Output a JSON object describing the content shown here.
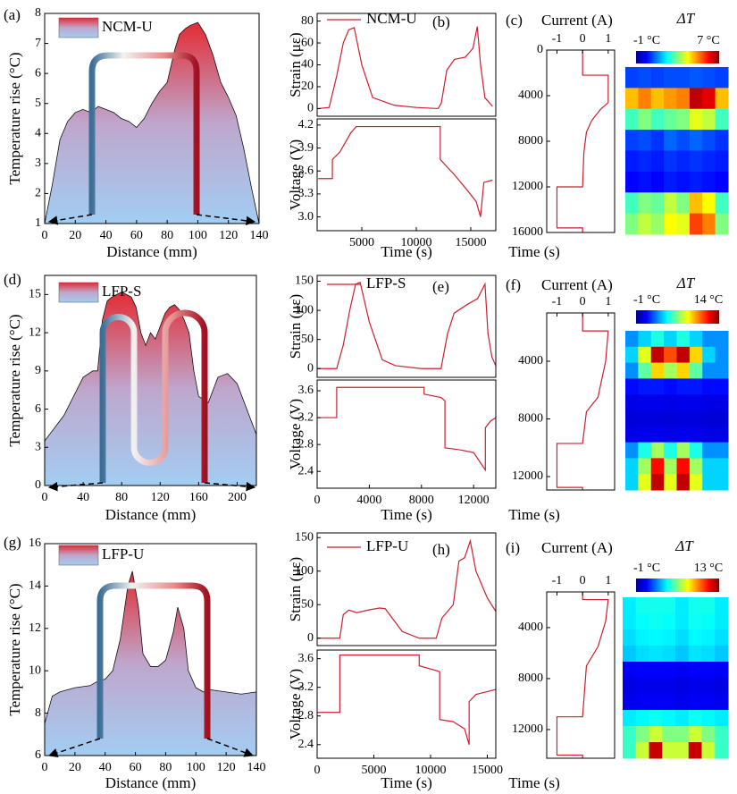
{
  "chart_data": [
    {
      "type": "area",
      "panel_label": "(a)",
      "xlabel": "Distance (mm)",
      "ylabel": "Temperature rise (°C)",
      "gradient": [
        "#e32b33",
        "#bfa6cc",
        "#a3cdf2"
      ],
      "x": [
        0,
        5,
        10,
        15,
        20,
        25,
        30,
        35,
        40,
        45,
        50,
        55,
        60,
        65,
        70,
        75,
        80,
        85,
        88,
        92,
        95,
        100,
        105,
        110,
        115,
        120,
        125,
        130,
        135,
        140
      ],
      "series": [
        {
          "name": "NCM-U",
          "values": [
            1.0,
            2.3,
            3.8,
            4.4,
            4.7,
            4.8,
            4.7,
            4.9,
            4.8,
            4.7,
            4.5,
            4.4,
            4.2,
            4.5,
            5.0,
            5.4,
            5.7,
            6.8,
            7.3,
            7.5,
            7.6,
            7.7,
            7.3,
            6.6,
            5.7,
            5.2,
            4.6,
            3.5,
            2.2,
            1.0
          ]
        }
      ],
      "xlim": [
        0,
        140
      ],
      "ylim": [
        1,
        8
      ],
      "xticks": [
        0,
        20,
        40,
        60,
        80,
        100,
        120,
        140
      ],
      "yticks": [
        1,
        2,
        3,
        4,
        5,
        6,
        7,
        8
      ]
    },
    {
      "type": "line",
      "panel_label": "(b)",
      "ylabel": "Strain (με)",
      "x": [
        1000,
        2000,
        2700,
        3300,
        3800,
        4300,
        5000,
        6000,
        8000,
        10000,
        12000,
        12300,
        12800,
        13500,
        14500,
        15200,
        15600,
        15900,
        16300,
        17000
      ],
      "series": [
        {
          "name": "NCM-U",
          "color": "#cc1f2f",
          "values": [
            0,
            1,
            30,
            60,
            72,
            74,
            40,
            10,
            3,
            1,
            0,
            5,
            35,
            45,
            47,
            55,
            75,
            40,
            10,
            2
          ]
        }
      ],
      "xlim": [
        900,
        17300
      ],
      "ylim": [
        -7,
        87
      ],
      "yticks": [
        0,
        20,
        40,
        60,
        80
      ]
    },
    {
      "type": "line",
      "xlabel": "Time (s)",
      "ylabel": "Voltage (V)",
      "x": [
        1000,
        2300,
        2300,
        3000,
        4000,
        4500,
        12200,
        12200,
        13500,
        14500,
        15500,
        15900,
        16200,
        17000
      ],
      "series": [
        {
          "color": "#cc1f2f",
          "values": [
            3.5,
            3.5,
            3.75,
            3.85,
            4.1,
            4.18,
            4.18,
            3.75,
            3.55,
            3.38,
            3.2,
            3.0,
            3.45,
            3.48
          ]
        }
      ],
      "xlim": [
        900,
        17300
      ],
      "ylim": [
        2.82,
        4.28
      ],
      "xticks": [
        5000,
        10000,
        15000
      ],
      "yticks": [
        {
          "value": 3,
          "label": "3.0"
        },
        3.3,
        3.6,
        3.9,
        4.2
      ]
    },
    {
      "type": "current",
      "panel_label": "(c)",
      "xlabel": "Current (A)",
      "ylabel": "Time (s)",
      "color": "#cc1f2f",
      "x": [
        0,
        2200,
        2200,
        4600,
        5200,
        6200,
        7200,
        9000,
        12000,
        12000,
        15600,
        15600,
        16000
      ],
      "values": [
        0,
        0,
        1,
        1,
        0.7,
        0.35,
        0.15,
        0.05,
        0,
        -1,
        -1,
        0,
        0
      ],
      "xlim": [
        -1.4,
        1.25
      ],
      "ylim": [
        0,
        16000
      ],
      "xticks": [
        -1,
        0,
        1
      ],
      "yticks": [
        0,
        4000,
        8000,
        12000,
        16000
      ]
    },
    {
      "type": "heatmap",
      "title": "ΔT",
      "clim": [
        -1,
        7
      ],
      "colorbar_ticks": [
        {
          "value": -1,
          "label": "-1 °C"
        },
        {
          "value": 7,
          "label": "7 °C"
        }
      ],
      "values": [
        [
          0.5,
          0.6,
          0.5,
          0.6,
          0.6,
          0.7,
          0.6,
          0.5
        ],
        [
          4.5,
          5,
          4.5,
          4.8,
          5,
          6.5,
          6.2,
          4.5
        ],
        [
          2.5,
          3,
          2.5,
          2.8,
          3,
          3.8,
          3.5,
          2.5
        ],
        [
          0.5,
          0.6,
          0.4,
          0.8,
          0.6,
          0.8,
          0.6,
          0.4
        ],
        [
          0.2,
          0.3,
          0.2,
          0.4,
          0.3,
          0.4,
          0.3,
          0.2
        ],
        [
          0,
          0.1,
          0,
          0.2,
          0.1,
          0.2,
          0.1,
          0
        ],
        [
          2.5,
          3,
          2.8,
          3.5,
          3,
          4.5,
          4,
          2.5
        ],
        [
          3,
          3.5,
          3.2,
          4,
          3.8,
          5.5,
          5,
          3
        ]
      ]
    },
    {
      "type": "area",
      "panel_label": "(d)",
      "xlabel": "Distance (mm)",
      "ylabel": "Temperature rise (°C)",
      "gradient": [
        "#e32b33",
        "#bfa6cc",
        "#a3cdf2"
      ],
      "x": [
        0,
        10,
        20,
        30,
        40,
        50,
        55,
        60,
        65,
        70,
        75,
        80,
        85,
        90,
        95,
        100,
        105,
        110,
        115,
        120,
        125,
        130,
        135,
        140,
        145,
        150,
        155,
        160,
        170,
        180,
        190,
        200,
        210,
        220
      ],
      "series": [
        {
          "name": "LFP-S",
          "values": [
            3.5,
            4.5,
            5.5,
            7,
            8.5,
            9,
            9,
            13,
            14.5,
            14.8,
            15,
            15.2,
            15,
            14.8,
            14,
            12,
            11,
            12,
            11.5,
            12.5,
            13.5,
            14,
            14.2,
            13.8,
            13,
            12,
            9,
            7,
            6.5,
            8.5,
            8.8,
            8,
            6,
            4
          ]
        }
      ],
      "xlim": [
        0,
        220
      ],
      "ylim": [
        0,
        16.5
      ],
      "xticks": [
        0,
        40,
        80,
        120,
        160,
        200
      ],
      "yticks": [
        0,
        3,
        6,
        9,
        12,
        15
      ]
    },
    {
      "type": "line",
      "panel_label": "(e)",
      "ylabel": "Strain (με)",
      "x": [
        0,
        1500,
        2000,
        2500,
        2950,
        3300,
        4000,
        5000,
        6000,
        8000,
        9500,
        10000,
        10500,
        11500,
        12300,
        12870,
        13100,
        13400,
        13700
      ],
      "series": [
        {
          "name": "LFP-S",
          "color": "#cc1f2f",
          "values": [
            0,
            0,
            40,
            100,
            145,
            148,
            80,
            15,
            5,
            0,
            0,
            60,
            95,
            110,
            120,
            145,
            60,
            20,
            5
          ]
        }
      ],
      "xlim": [
        0,
        13700
      ],
      "ylim": [
        -15,
        160
      ],
      "yticks": [
        0,
        50,
        100,
        150
      ]
    },
    {
      "type": "line",
      "xlabel": "Time (s)",
      "ylabel": "Voltage (V)",
      "x": [
        0,
        1500,
        1500,
        3000,
        8200,
        8200,
        9500,
        9800,
        9800,
        11000,
        12000,
        12900,
        12900,
        13300,
        13700
      ],
      "series": [
        {
          "color": "#cc1f2f",
          "values": [
            3.2,
            3.2,
            3.65,
            3.65,
            3.65,
            3.55,
            3.5,
            3.45,
            2.75,
            2.72,
            2.68,
            2.42,
            3.05,
            3.15,
            3.2
          ]
        }
      ],
      "xlim": [
        0,
        13700
      ],
      "ylim": [
        2.15,
        3.76
      ],
      "xticks": [
        0,
        4000,
        8000,
        12000
      ],
      "yticks": [
        2.4,
        2.8,
        3.2,
        3.6
      ]
    },
    {
      "type": "current",
      "panel_label": "(f)",
      "xlabel": "Current (A)",
      "ylabel": "Time (s)",
      "color": "#cc1f2f",
      "x": [
        650,
        1900,
        1900,
        4000,
        6500,
        7500,
        9700,
        9700,
        12750,
        12750,
        12930
      ],
      "values": [
        0,
        0,
        1,
        0.9,
        0.6,
        0.15,
        0,
        -1,
        -1,
        0,
        0
      ],
      "xlim": [
        -1.4,
        1.25
      ],
      "ylim": [
        650,
        12930
      ],
      "xticks": [
        -1,
        0,
        1
      ],
      "yticks": [
        4000,
        8000,
        12000
      ]
    },
    {
      "type": "heatmap",
      "title": "ΔT",
      "clim": [
        -1,
        14
      ],
      "colorbar_ticks": [
        {
          "value": -1,
          "label": "-1 °C"
        },
        {
          "value": 14,
          "label": "14 °C"
        }
      ],
      "values": [
        [
          3,
          4,
          5,
          4,
          5,
          4,
          3,
          3
        ],
        [
          4,
          8,
          13,
          11,
          13,
          9,
          4,
          3
        ],
        [
          3,
          6,
          9,
          7,
          9,
          6,
          3,
          3
        ],
        [
          1,
          1.2,
          1.2,
          1,
          1.2,
          1.2,
          1,
          1
        ],
        [
          0.5,
          0.6,
          0.6,
          0.5,
          0.6,
          0.6,
          0.5,
          0.5
        ],
        [
          0.3,
          0.4,
          0.4,
          0.3,
          0.4,
          0.4,
          0.3,
          0.3
        ],
        [
          0.5,
          0.6,
          0.6,
          0.5,
          0.6,
          0.6,
          0.5,
          0.5
        ],
        [
          3,
          5,
          7,
          5,
          7,
          5,
          3,
          3
        ],
        [
          4,
          7,
          12,
          7,
          12,
          7,
          4,
          4
        ],
        [
          4,
          8,
          13,
          8,
          13,
          8,
          4,
          4
        ]
      ]
    },
    {
      "type": "area",
      "panel_label": "(g)",
      "xlabel": "Distance (mm)",
      "ylabel": "Temperature rise (°C)",
      "gradient": [
        "#e32b33",
        "#bfa6cc",
        "#a3cdf2"
      ],
      "x": [
        0,
        5,
        10,
        20,
        30,
        35,
        40,
        45,
        50,
        55,
        58,
        62,
        65,
        70,
        75,
        80,
        85,
        88,
        92,
        95,
        100,
        105,
        110,
        120,
        130,
        140
      ],
      "series": [
        {
          "name": "LFP-U",
          "values": [
            7.5,
            8.8,
            9,
            9.2,
            9.3,
            9.5,
            9.6,
            10,
            11.5,
            14,
            14.7,
            13,
            10.8,
            10.2,
            10.2,
            10.5,
            11.8,
            13,
            12,
            10,
            9.2,
            9,
            9.1,
            9,
            8.9,
            9
          ]
        }
      ],
      "xlim": [
        0,
        140
      ],
      "ylim": [
        6,
        16
      ],
      "xticks": [
        0,
        20,
        40,
        60,
        80,
        100,
        120,
        140
      ],
      "yticks": [
        6,
        8,
        10,
        12,
        14,
        16
      ]
    },
    {
      "type": "line",
      "panel_label": "(h)",
      "ylabel": "Strain (με)",
      "x": [
        0,
        2000,
        2300,
        2800,
        3500,
        4500,
        5500,
        6000,
        7500,
        9000,
        10500,
        11000,
        12000,
        12500,
        13000,
        13500,
        14000,
        15000,
        15750
      ],
      "series": [
        {
          "name": "LFP-U",
          "color": "#cc1f2f",
          "values": [
            0,
            0,
            35,
            42,
            38,
            42,
            45,
            44,
            10,
            0,
            0,
            30,
            50,
            115,
            120,
            145,
            100,
            60,
            40
          ]
        }
      ],
      "xlim": [
        0,
        15750
      ],
      "ylim": [
        -11,
        157
      ],
      "yticks": [
        0,
        50,
        100,
        150
      ]
    },
    {
      "type": "line",
      "xlabel": "Time (s)",
      "ylabel": "Voltage (V)",
      "x": [
        0,
        2000,
        2000,
        9000,
        9000,
        10800,
        10800,
        12000,
        13000,
        13400,
        13400,
        14000,
        15750
      ],
      "series": [
        {
          "color": "#cc1f2f",
          "values": [
            2.85,
            2.85,
            3.65,
            3.65,
            3.5,
            3.42,
            2.75,
            2.72,
            2.62,
            2.4,
            3.0,
            3.1,
            3.17
          ]
        }
      ],
      "xlim": [
        0,
        15750
      ],
      "ylim": [
        2.21,
        3.72
      ],
      "xticks": [
        0,
        5000,
        10000,
        15000
      ],
      "yticks": [
        2.4,
        2.8,
        3.2,
        3.6
      ]
    },
    {
      "type": "current",
      "panel_label": "(i)",
      "xlabel": "Current (A)",
      "ylabel": "Time (s)",
      "color": "#cc1f2f",
      "x": [
        1200,
        1800,
        1800,
        3500,
        5500,
        7000,
        11000,
        11000,
        14000,
        14000,
        14250
      ],
      "values": [
        0,
        0,
        1,
        0.9,
        0.6,
        0.15,
        0,
        -1,
        -1,
        0,
        0
      ],
      "xlim": [
        -1.4,
        1.25
      ],
      "ylim": [
        1200,
        14250
      ],
      "xticks": [
        -1,
        0,
        1
      ],
      "yticks": [
        4000,
        8000,
        12000
      ]
    },
    {
      "type": "heatmap",
      "title": "ΔT",
      "clim": [
        -1,
        13
      ],
      "colorbar_ticks": [
        {
          "value": -1,
          "label": "-1 °C"
        },
        {
          "value": 13,
          "label": "13 °C"
        }
      ],
      "values": [
        [
          4,
          4.5,
          4.5,
          4.5,
          4,
          4.5,
          4.5,
          4
        ],
        [
          4,
          4.3,
          4.4,
          4.3,
          4,
          4.4,
          4.3,
          4
        ],
        [
          3.8,
          4.1,
          4.2,
          4.1,
          3.8,
          4.2,
          4.1,
          3.8
        ],
        [
          3.5,
          3.8,
          3.9,
          3.8,
          3.5,
          3.9,
          3.8,
          3.5
        ],
        [
          0.6,
          0.7,
          0.7,
          0.7,
          0.6,
          0.7,
          0.7,
          0.6
        ],
        [
          0.4,
          0.5,
          0.5,
          0.5,
          0.4,
          0.5,
          0.5,
          0.4
        ],
        [
          0.5,
          0.6,
          0.6,
          0.6,
          0.5,
          0.6,
          0.6,
          0.5
        ],
        [
          4,
          4.2,
          4.4,
          4.2,
          4,
          4.4,
          4.2,
          4
        ],
        [
          5,
          6,
          7,
          6,
          6,
          7,
          6,
          5
        ],
        [
          5,
          7,
          12,
          7,
          7,
          12,
          7,
          5
        ]
      ]
    }
  ]
}
